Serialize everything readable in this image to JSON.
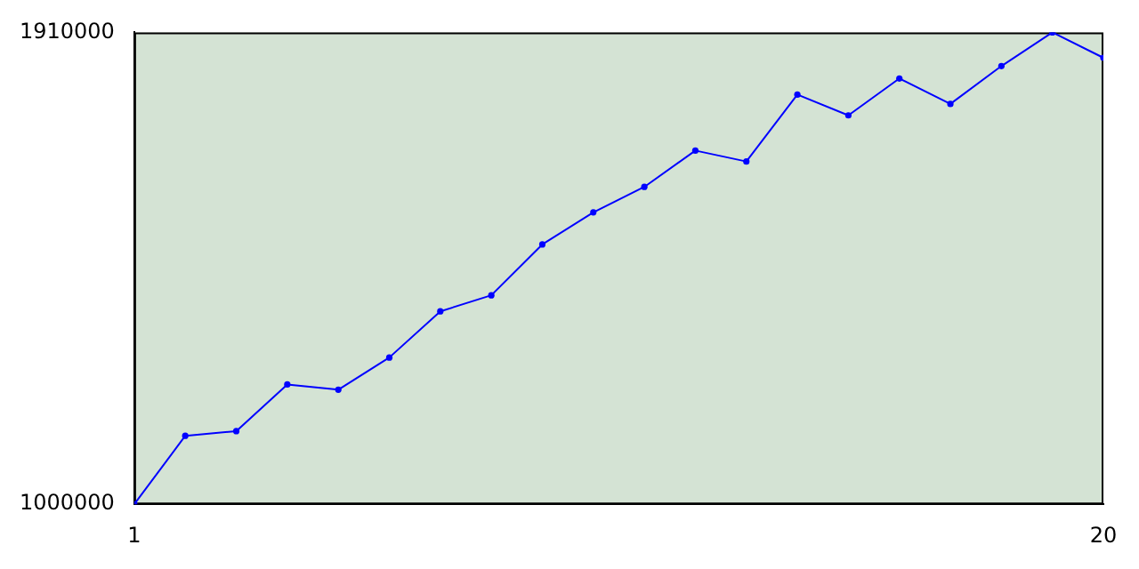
{
  "chart_data": {
    "type": "line",
    "x": [
      1,
      2,
      3,
      4,
      5,
      6,
      7,
      8,
      9,
      10,
      11,
      12,
      13,
      14,
      15,
      16,
      17,
      18,
      19,
      20
    ],
    "series": [
      {
        "color": "#0000ff",
        "values": [
          1000000,
          1132000,
          1141000,
          1231000,
          1221000,
          1283000,
          1372000,
          1403000,
          1501000,
          1563000,
          1612000,
          1682000,
          1661000,
          1790000,
          1750000,
          1821000,
          1772000,
          1845000,
          1910000,
          1861000
        ]
      }
    ],
    "xlim": [
      1,
      20
    ],
    "xticks": [
      1,
      20
    ],
    "ylim": [
      1000000,
      1910000
    ],
    "yticks": [
      1000000,
      1910000
    ],
    "grid": false,
    "legend": false,
    "marker": "circle",
    "line_style": "solid"
  }
}
